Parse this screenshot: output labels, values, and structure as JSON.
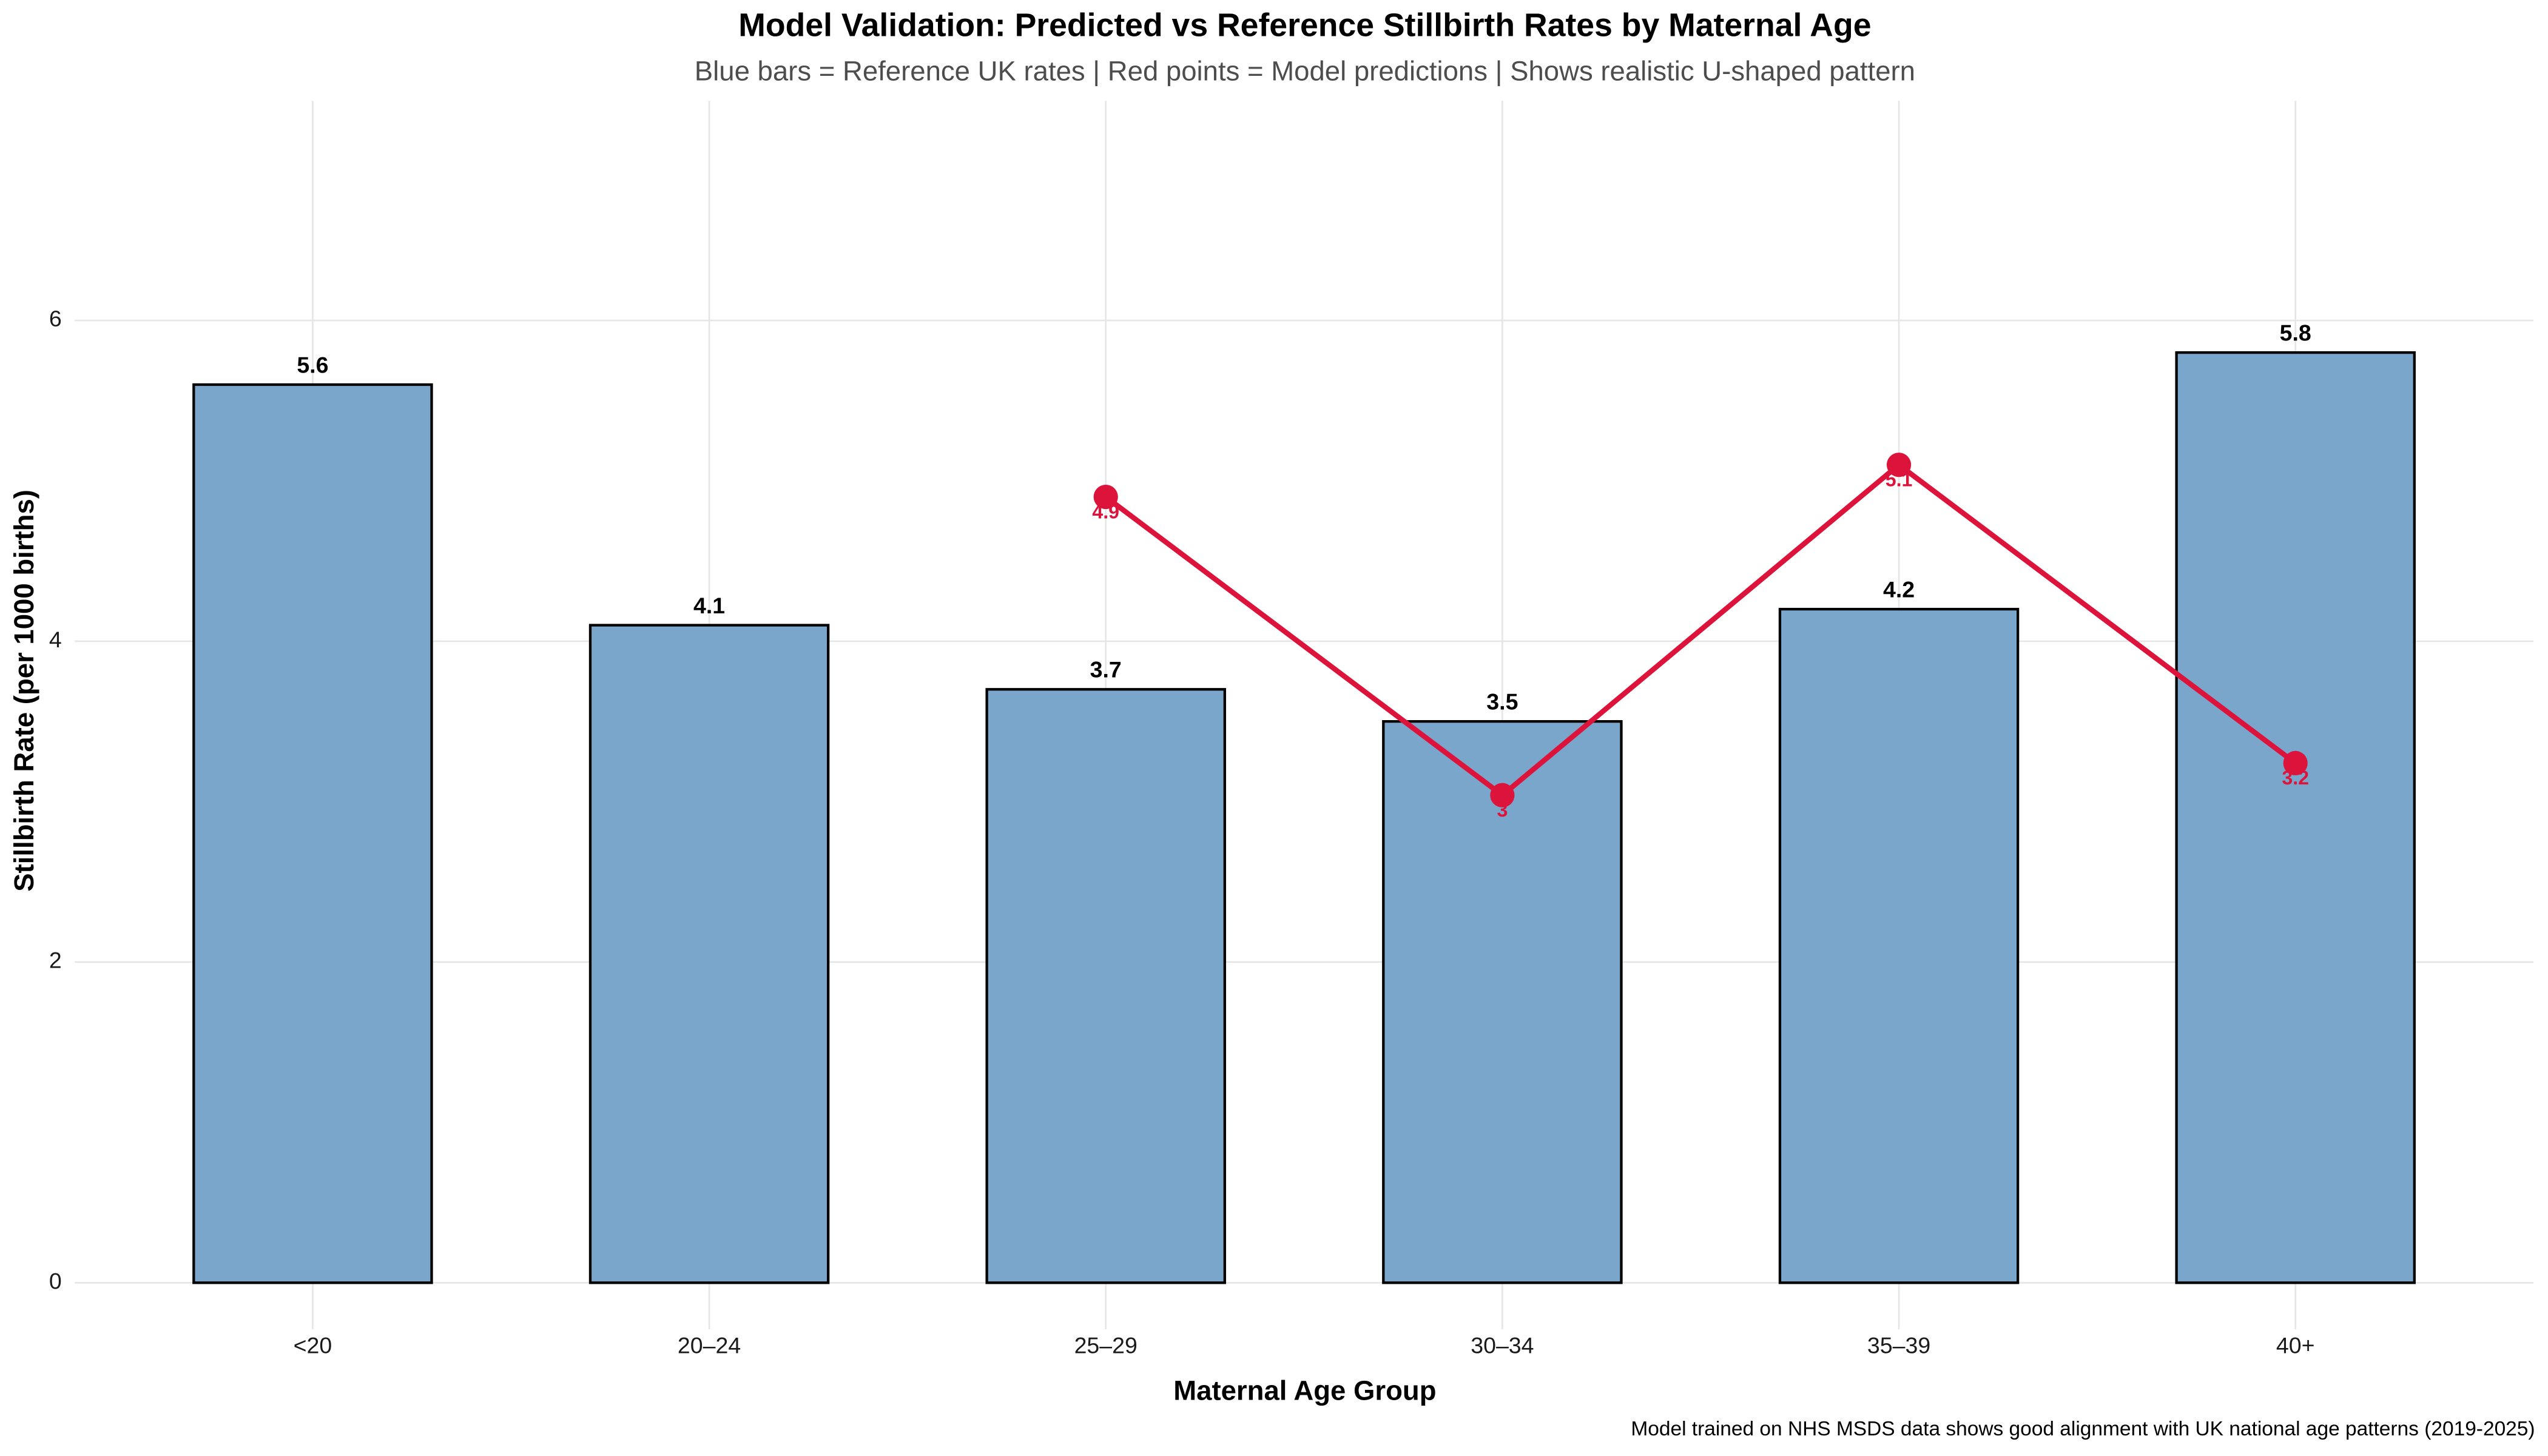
{
  "chart_data": {
    "type": "bar",
    "title": "Model Validation: Predicted vs Reference Stillbirth Rates by Maternal Age",
    "subtitle": "Blue bars = Reference UK rates | Red points = Model predictions | Shows realistic U-shaped pattern",
    "x_label": "Maternal Age Group",
    "y_label": "Stillbirth Rate (per 1000 births)",
    "caption": "Model trained on NHS MSDS data shows good alignment with UK national age patterns (2019-2025)",
    "categories": [
      "<20",
      "20–24",
      "25–29",
      "30–34",
      "35–39",
      "40+"
    ],
    "series": [
      {
        "type": "bar",
        "color": "#7ba6cc",
        "values": [
          5.6,
          4.1,
          3.7,
          3.5,
          4.2,
          5.8
        ]
      },
      {
        "type": "line",
        "color": "#dc143c",
        "values": [
          null,
          null,
          4.9,
          3.04,
          5.1,
          3.24
        ],
        "value_labels": [
          null,
          null,
          "4.9",
          "3",
          "5.1",
          "3.2"
        ]
      }
    ],
    "ylim": [
      -0.29,
      7.37
    ],
    "yticks": [
      0,
      2,
      4,
      6
    ],
    "grid": true
  }
}
